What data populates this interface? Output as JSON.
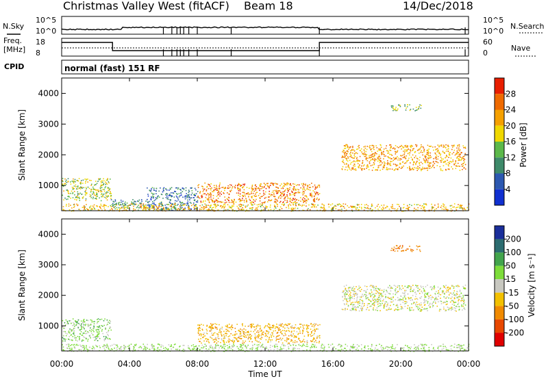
{
  "header": {
    "station": "Christmas Valley West (fitACF)",
    "beam": "Beam 18",
    "date": "14/Dec/2018"
  },
  "noise_panel": {
    "left_label": "N.Sky",
    "right_label": "N.Search",
    "left_ticks": [
      "10^5",
      "10^0"
    ],
    "right_ticks": [
      "10^5",
      "10^0"
    ]
  },
  "freq_panel": {
    "left_label_line1": "Freq.",
    "left_label_line2": "[MHz]",
    "right_label": "Nave",
    "left_ticks": [
      "18",
      "8"
    ],
    "right_ticks": [
      "60",
      "0"
    ]
  },
  "cpid": {
    "label": "CPID",
    "mode": "normal (fast) 151 RF"
  },
  "xaxis": {
    "label": "Time UT",
    "tick_labels": [
      "00:00",
      "04:00",
      "08:00",
      "12:00",
      "16:00",
      "20:00",
      "00:00"
    ]
  },
  "colorbars": {
    "power": {
      "label": "Power [dB]",
      "ticks": [
        "4",
        "8",
        "12",
        "16",
        "20",
        "24",
        "28"
      ],
      "colors": [
        "#1030d0",
        "#2c58b0",
        "#3e8a6a",
        "#5cb84a",
        "#f0d800",
        "#f5a000",
        "#ef6a00",
        "#e81e00"
      ]
    },
    "velocity": {
      "label": "Velocity [m s⁻¹]",
      "ticks": [
        "200",
        "100",
        "50",
        "15",
        "-15",
        "-50",
        "-100",
        "-200"
      ],
      "colors": [
        "#1a2e9a",
        "#2c6c70",
        "#42a44c",
        "#7ddc3a",
        "#c8c8c0",
        "#f2c000",
        "#f08a00",
        "#e84800",
        "#e00000"
      ]
    }
  },
  "chart_data": [
    {
      "type": "heatmap",
      "name": "power",
      "ylabel": "Slant Range [km]",
      "xlabel": "",
      "x_range_ut_hours": [
        0,
        24
      ],
      "ylim": [
        180,
        4500
      ],
      "yticks": [
        1000,
        2000,
        3000,
        4000
      ],
      "ytick_labels": [
        "1000",
        "2000",
        "3000",
        "4000"
      ],
      "colorbar_label": "Power [dB]",
      "colorbar_ticks": [
        4,
        8,
        12,
        16,
        20,
        24,
        28
      ],
      "echo_regions": [
        {
          "ut_hours": [
            0.0,
            2.9
          ],
          "range_km": [
            520,
            1250
          ],
          "typical_db": 16
        },
        {
          "ut_hours": [
            2.9,
            5.0
          ],
          "range_km": [
            280,
            560
          ],
          "typical_db": 10
        },
        {
          "ut_hours": [
            5.0,
            8.0
          ],
          "range_km": [
            200,
            950
          ],
          "typical_db": 8
        },
        {
          "ut_hours": [
            8.0,
            15.2
          ],
          "range_km": [
            450,
            1100
          ],
          "typical_db": 24
        },
        {
          "ut_hours": [
            16.5,
            23.8
          ],
          "range_km": [
            1500,
            2350
          ],
          "typical_db": 22
        },
        {
          "ut_hours": [
            19.4,
            21.2
          ],
          "range_km": [
            3450,
            3650
          ],
          "typical_db": 14
        },
        {
          "ut_hours": [
            0.0,
            24.0
          ],
          "range_km": [
            180,
            420
          ],
          "typical_db": 20
        }
      ]
    },
    {
      "type": "heatmap",
      "name": "velocity",
      "ylabel": "Slant Range [km]",
      "xlabel": "Time UT",
      "x_range_ut_hours": [
        0,
        24
      ],
      "ylim": [
        180,
        4500
      ],
      "yticks": [
        1000,
        2000,
        3000,
        4000
      ],
      "ytick_labels": [
        "1000",
        "2000",
        "3000",
        "4000"
      ],
      "colorbar_label": "Velocity [m s⁻¹]",
      "colorbar_ticks": [
        200,
        100,
        50,
        15,
        -15,
        -50,
        -100,
        -200
      ],
      "echo_regions": [
        {
          "ut_hours": [
            0.0,
            2.9
          ],
          "range_km": [
            520,
            1250
          ],
          "typical_ms": 30
        },
        {
          "ut_hours": [
            8.0,
            15.2
          ],
          "range_km": [
            450,
            1100
          ],
          "typical_ms": -40
        },
        {
          "ut_hours": [
            16.5,
            23.8
          ],
          "range_km": [
            1500,
            2350
          ],
          "typical_ms": 0
        },
        {
          "ut_hours": [
            19.4,
            21.2
          ],
          "range_km": [
            3450,
            3650
          ],
          "typical_ms": -80
        },
        {
          "ut_hours": [
            0.0,
            24.0
          ],
          "range_km": [
            180,
            420
          ],
          "typical_ms": 20
        }
      ]
    }
  ]
}
